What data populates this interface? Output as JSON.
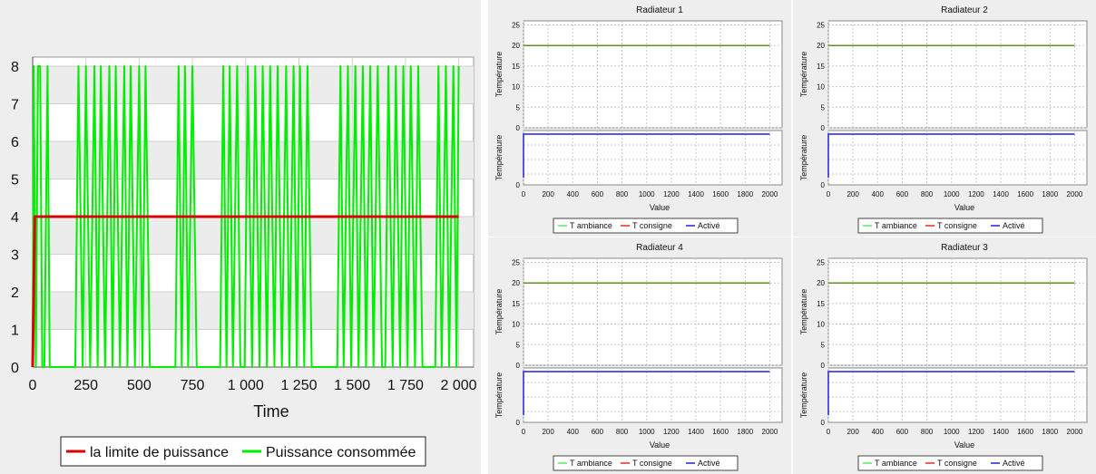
{
  "colors": {
    "panel_bg": "#eeeeee",
    "power_limit": "#dd0000",
    "power_consumed": "#00ee00",
    "t_ambiance": "#55ee55",
    "t_consigne": "#ff2222",
    "active": "#2222dd",
    "overlap_line": "#6a8f1c"
  },
  "chart_data": [
    {
      "type": "line",
      "title": "",
      "xlabel": "Time",
      "ylabel": "",
      "xlim": [
        0,
        2000
      ],
      "ylim": [
        0,
        8
      ],
      "x_tick_labels": [
        "0",
        "250",
        "500",
        "750",
        "1 000",
        "1 250",
        "1 500",
        "1 750",
        "2 000"
      ],
      "y_tick_labels": [
        "0",
        "1",
        "2",
        "3",
        "4",
        "5",
        "6",
        "7",
        "8"
      ],
      "grid": true,
      "legend_position": "bottom",
      "series": [
        {
          "name": "la limite de puissance",
          "x": [
            0,
            10,
            2000
          ],
          "y": [
            0,
            4,
            4
          ]
        },
        {
          "name": "Puissance consommée",
          "x": [
            0,
            5,
            15,
            25,
            35,
            45,
            55,
            70,
            80,
            200,
            215,
            235,
            250,
            270,
            290,
            305,
            320,
            340,
            360,
            375,
            390,
            410,
            430,
            445,
            460,
            480,
            500,
            515,
            530,
            550,
            670,
            685,
            700,
            715,
            730,
            750,
            770,
            785,
            880,
            895,
            910,
            925,
            940,
            960,
            975,
            995,
            1010,
            1030,
            1045,
            1065,
            1080,
            1100,
            1115,
            1135,
            1150,
            1170,
            1190,
            1205,
            1225,
            1240,
            1255,
            1275,
            1290,
            1310,
            1430,
            1445,
            1460,
            1480,
            1495,
            1515,
            1530,
            1550,
            1565,
            1585,
            1600,
            1620,
            1640,
            1655,
            1670,
            1690,
            1705,
            1725,
            1740,
            1760,
            1775,
            1795,
            1810,
            1830,
            1890,
            1905,
            1920,
            1940,
            1955,
            1975,
            1990,
            2000
          ],
          "y": [
            0,
            8,
            0,
            8,
            8,
            0,
            0,
            8,
            0,
            0,
            8,
            0,
            8,
            0,
            8,
            0,
            8,
            0,
            8,
            0,
            8,
            0,
            8,
            0,
            8,
            0,
            8,
            0,
            8,
            0,
            0,
            8,
            0,
            8,
            0,
            8,
            0,
            0,
            0,
            8,
            0,
            8,
            0,
            8,
            0,
            0,
            8,
            0,
            8,
            0,
            8,
            0,
            8,
            0,
            8,
            0,
            8,
            0,
            8,
            0,
            8,
            0,
            8,
            0,
            0,
            8,
            0,
            8,
            0,
            8,
            0,
            8,
            0,
            8,
            0,
            8,
            0,
            0,
            8,
            0,
            8,
            0,
            8,
            0,
            8,
            0,
            8,
            0,
            0,
            8,
            0,
            8,
            0,
            8,
            0,
            8
          ]
        }
      ]
    },
    {
      "type": "line",
      "title": "Radiateur 1",
      "xlabel": "Value",
      "ylabel_top": "Température",
      "ylabel_bottom": "Température",
      "xlim": [
        0,
        2100
      ],
      "ylim_top": [
        0,
        26
      ],
      "ylim_bottom": [
        0,
        1
      ],
      "x_tick_labels": [
        "0",
        "200",
        "400",
        "600",
        "800",
        "1000",
        "1200",
        "1400",
        "1600",
        "1800",
        "2000"
      ],
      "y_tick_labels_top": [
        "0",
        "5",
        "10",
        "15",
        "20",
        "25"
      ],
      "y_tick_labels_bottom": [
        "0"
      ],
      "grid": true,
      "legend_position": "bottom",
      "series": [
        {
          "name": "T ambiance",
          "x": [
            0,
            2000
          ],
          "y": [
            20,
            20
          ]
        },
        {
          "name": "T consigne",
          "x": [
            0,
            2000
          ],
          "y": [
            20,
            20
          ]
        },
        {
          "name": "Activé",
          "x": [
            0,
            2000
          ],
          "y": [
            1,
            1
          ]
        }
      ]
    },
    {
      "type": "line",
      "title": "Radiateur 2",
      "xlabel": "Value",
      "ylabel_top": "Température",
      "ylabel_bottom": "Température",
      "xlim": [
        0,
        2100
      ],
      "ylim_top": [
        0,
        26
      ],
      "ylim_bottom": [
        0,
        1
      ],
      "x_tick_labels": [
        "0",
        "200",
        "400",
        "600",
        "800",
        "1000",
        "1200",
        "1400",
        "1600",
        "1800",
        "2000"
      ],
      "y_tick_labels_top": [
        "0",
        "5",
        "10",
        "15",
        "20",
        "25"
      ],
      "y_tick_labels_bottom": [
        "0"
      ],
      "grid": true,
      "legend_position": "bottom",
      "series": [
        {
          "name": "T ambiance",
          "x": [
            0,
            2000
          ],
          "y": [
            20,
            20
          ]
        },
        {
          "name": "T consigne",
          "x": [
            0,
            2000
          ],
          "y": [
            20,
            20
          ]
        },
        {
          "name": "Activé",
          "x": [
            0,
            2000
          ],
          "y": [
            1,
            1
          ]
        }
      ]
    },
    {
      "type": "line",
      "title": "Radiateur 4",
      "xlabel": "Value",
      "ylabel_top": "Température",
      "ylabel_bottom": "Température",
      "xlim": [
        0,
        2100
      ],
      "ylim_top": [
        0,
        26
      ],
      "ylim_bottom": [
        0,
        1
      ],
      "x_tick_labels": [
        "0",
        "200",
        "400",
        "600",
        "800",
        "1000",
        "1200",
        "1400",
        "1600",
        "1800",
        "2000"
      ],
      "y_tick_labels_top": [
        "0",
        "5",
        "10",
        "15",
        "20",
        "25"
      ],
      "y_tick_labels_bottom": [
        "0"
      ],
      "grid": true,
      "legend_position": "bottom",
      "series": [
        {
          "name": "T ambiance",
          "x": [
            0,
            2000
          ],
          "y": [
            20,
            20
          ]
        },
        {
          "name": "T consigne",
          "x": [
            0,
            2000
          ],
          "y": [
            20,
            20
          ]
        },
        {
          "name": "Activé",
          "x": [
            0,
            2000
          ],
          "y": [
            1,
            1
          ]
        }
      ]
    },
    {
      "type": "line",
      "title": "Radiateur 3",
      "xlabel": "Value",
      "ylabel_top": "Température",
      "ylabel_bottom": "Température",
      "xlim": [
        0,
        2100
      ],
      "ylim_top": [
        0,
        26
      ],
      "ylim_bottom": [
        0,
        1
      ],
      "x_tick_labels": [
        "0",
        "200",
        "400",
        "600",
        "800",
        "1000",
        "1200",
        "1400",
        "1600",
        "1800",
        "2000"
      ],
      "y_tick_labels_top": [
        "0",
        "5",
        "10",
        "15",
        "20",
        "25"
      ],
      "y_tick_labels_bottom": [
        "0"
      ],
      "grid": true,
      "legend_position": "bottom",
      "series": [
        {
          "name": "T ambiance",
          "x": [
            0,
            2000
          ],
          "y": [
            20,
            20
          ]
        },
        {
          "name": "T consigne",
          "x": [
            0,
            2000
          ],
          "y": [
            20,
            20
          ]
        },
        {
          "name": "Activé",
          "x": [
            0,
            2000
          ],
          "y": [
            1,
            1
          ]
        }
      ]
    }
  ]
}
